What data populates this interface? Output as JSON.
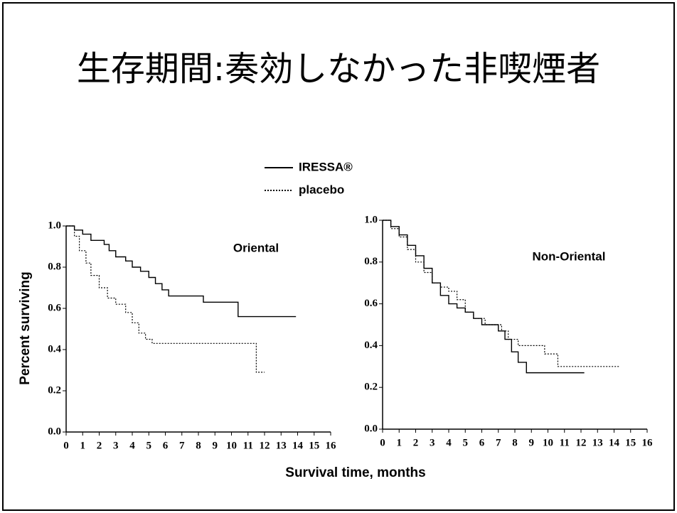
{
  "title": "生存期間:奏効しなかった非喫煙者",
  "ylabel": "Percent surviving",
  "xlabel": "Survival time, months",
  "chart_data": [
    {
      "type": "line",
      "step": true,
      "title": "Oriental",
      "xlim": [
        0,
        16
      ],
      "ylim": [
        0,
        1
      ],
      "xticks": [
        0,
        1,
        2,
        3,
        4,
        5,
        6,
        7,
        8,
        9,
        10,
        11,
        12,
        13,
        14,
        15,
        16
      ],
      "yticks": [
        {
          "value": 0,
          "label": "0.0"
        },
        0.2,
        0.4,
        0.6,
        0.8,
        {
          "value": 1,
          "label": "1.0"
        }
      ],
      "series": [
        {
          "name": "IRESSA®",
          "color": "#000000",
          "dash": "solid",
          "x": [
            0,
            0.5,
            1,
            1.5,
            2.3,
            2.6,
            3,
            3.6,
            4,
            4.5,
            5,
            5.4,
            5.8,
            6.2,
            8.3,
            10.4,
            13.9
          ],
          "values": [
            1.0,
            0.98,
            0.96,
            0.93,
            0.91,
            0.88,
            0.85,
            0.83,
            0.8,
            0.78,
            0.75,
            0.72,
            0.69,
            0.66,
            0.63,
            0.56,
            0.56
          ]
        },
        {
          "name": "placebo",
          "color": "#000000",
          "dash": "dotted",
          "x": [
            0,
            0.5,
            0.8,
            1.2,
            1.5,
            2,
            2.5,
            3,
            3.6,
            4,
            4.4,
            4.8,
            5.2,
            11.5,
            12
          ],
          "values": [
            1.0,
            0.95,
            0.88,
            0.82,
            0.76,
            0.7,
            0.65,
            0.62,
            0.58,
            0.53,
            0.48,
            0.45,
            0.43,
            0.29,
            0.29
          ]
        }
      ]
    },
    {
      "type": "line",
      "step": true,
      "title": "Non-Oriental",
      "xlim": [
        0,
        16
      ],
      "ylim": [
        0,
        1
      ],
      "xticks": [
        0,
        1,
        2,
        3,
        4,
        5,
        6,
        7,
        8,
        9,
        10,
        11,
        12,
        13,
        14,
        15,
        16
      ],
      "yticks": [
        {
          "value": 0,
          "label": "0.0"
        },
        0.2,
        0.4,
        0.6,
        0.8,
        {
          "value": 1,
          "label": "1.0"
        }
      ],
      "series": [
        {
          "name": "IRESSA®",
          "color": "#000000",
          "dash": "solid",
          "x": [
            0,
            0.5,
            1,
            1.5,
            2,
            2.5,
            3,
            3.5,
            4,
            4.5,
            5,
            5.5,
            6,
            7,
            7.4,
            7.8,
            8.2,
            8.7,
            12.2
          ],
          "values": [
            1.0,
            0.97,
            0.93,
            0.88,
            0.83,
            0.77,
            0.7,
            0.64,
            0.6,
            0.58,
            0.56,
            0.53,
            0.5,
            0.47,
            0.43,
            0.37,
            0.32,
            0.27,
            0.27
          ]
        },
        {
          "name": "placebo",
          "color": "#000000",
          "dash": "dotted",
          "x": [
            0,
            0.5,
            1,
            1.5,
            2,
            2.5,
            3,
            3.5,
            4,
            4.5,
            5,
            5.5,
            6.2,
            7.2,
            7.6,
            8.2,
            9.8,
            10.6,
            14.3
          ],
          "values": [
            1.0,
            0.96,
            0.92,
            0.86,
            0.8,
            0.75,
            0.7,
            0.68,
            0.66,
            0.62,
            0.56,
            0.53,
            0.5,
            0.47,
            0.43,
            0.4,
            0.36,
            0.3,
            0.3
          ]
        }
      ]
    }
  ]
}
